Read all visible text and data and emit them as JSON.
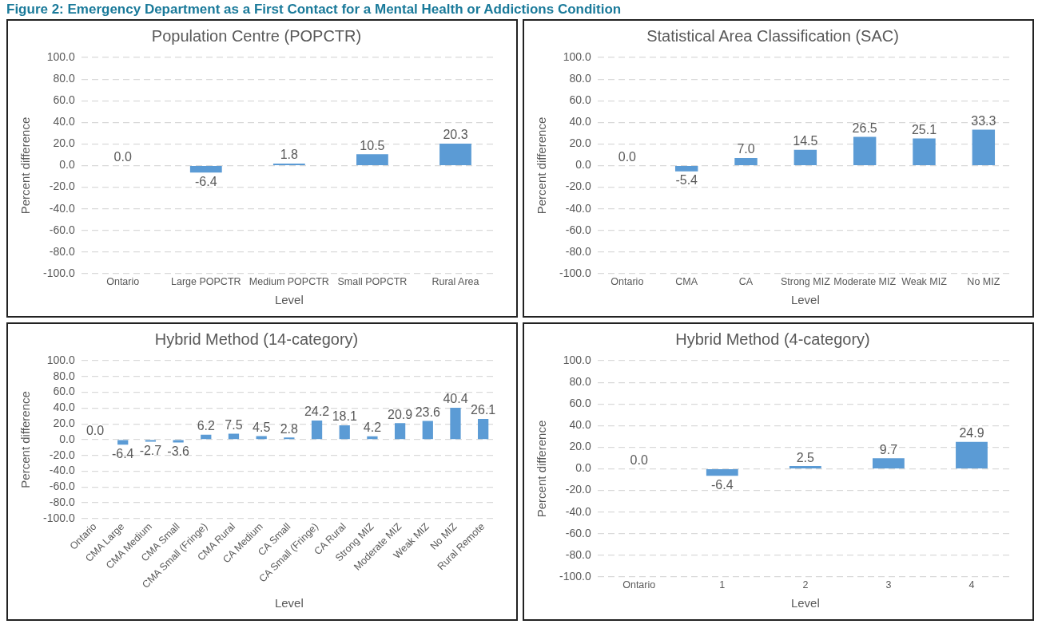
{
  "chart_data": [
    {
      "type": "bar",
      "title": "Population Centre (POPCTR)",
      "xlabel": "Level",
      "ylabel": "Percent difference",
      "annotations": [
        "Figure 2: Emergency Department as a First Contact for a Mental Health or Addictions Condition"
      ],
      "categories": [
        "Ontario",
        "Large POPCTR",
        "Medium POPCTR",
        "Small POPCTR",
        "Rural Area"
      ],
      "values": [
        0.0,
        -6.4,
        1.8,
        10.5,
        20.3
      ],
      "value_labels": [
        "0.0",
        "-6.4",
        "1.8",
        "10.5",
        "20.3"
      ],
      "color": "#5b9bd5",
      "ylim": [
        -100,
        100
      ],
      "yticks": [
        {
          "value": -100,
          "label": "-100.0"
        },
        {
          "value": -80,
          "label": "-80.0"
        },
        {
          "value": -60,
          "label": "-60.0"
        },
        {
          "value": -40,
          "label": "-40.0"
        },
        {
          "value": -20,
          "label": "-20.0"
        },
        {
          "value": 0,
          "label": "0.0"
        },
        {
          "value": 20,
          "label": "20.0"
        },
        {
          "value": 40,
          "label": "40.0"
        },
        {
          "value": 60,
          "label": "60.0"
        },
        {
          "value": 80,
          "label": "80.0"
        },
        {
          "value": 100,
          "label": "100.0"
        }
      ],
      "grid": "y"
    },
    {
      "type": "bar",
      "title": "Statistical Area Classification (SAC)",
      "xlabel": "Level",
      "ylabel": "Percent difference",
      "categories": [
        "Ontario",
        "CMA",
        "CA",
        "Strong MIZ",
        "Moderate MIZ",
        "Weak MIZ",
        "No MIZ"
      ],
      "values": [
        0.0,
        -5.4,
        7.0,
        14.5,
        26.5,
        25.1,
        33.3
      ],
      "value_labels": [
        "0.0",
        "-5.4",
        "7.0",
        "14.5",
        "26.5",
        "25.1",
        "33.3"
      ],
      "color": "#5b9bd5",
      "ylim": [
        -100,
        100
      ],
      "yticks": [
        {
          "value": -100,
          "label": "-100.0"
        },
        {
          "value": -80,
          "label": "-80.0"
        },
        {
          "value": -60,
          "label": "-60.0"
        },
        {
          "value": -40,
          "label": "-40.0"
        },
        {
          "value": -20,
          "label": "-20.0"
        },
        {
          "value": 0,
          "label": "0.0"
        },
        {
          "value": 20,
          "label": "20.0"
        },
        {
          "value": 40,
          "label": "40.0"
        },
        {
          "value": 60,
          "label": "60.0"
        },
        {
          "value": 80,
          "label": "80.0"
        },
        {
          "value": 100,
          "label": "100.0"
        }
      ],
      "grid": "y"
    },
    {
      "type": "bar",
      "title": "Hybrid Method (14-category)",
      "xlabel": "Level",
      "ylabel": "Percent difference",
      "categories": [
        "Ontario",
        "CMA Large",
        "CMA Medium",
        "CMA Small",
        "CMA Small (Fringe)",
        "CMA Rural",
        "CA Medium",
        "CA Small",
        "CA Small (Fringe)",
        "CA Rural",
        "Strong MIZ",
        "Moderate MIZ",
        "Weak MIZ",
        "No MIZ",
        "Rural Remote"
      ],
      "values": [
        0.0,
        -6.4,
        -2.7,
        -3.6,
        6.2,
        7.5,
        4.5,
        2.8,
        24.2,
        18.1,
        4.2,
        20.9,
        23.6,
        40.4,
        26.1
      ],
      "value_labels": [
        "0.0",
        "-6.4",
        "-2.7",
        "-3.6",
        "6.2",
        "7.5",
        "4.5",
        "2.8",
        "24.2",
        "18.1",
        "4.2",
        "20.9",
        "23.6",
        "40.4",
        "26.1"
      ],
      "color": "#5b9bd5",
      "ylim": [
        -100,
        100
      ],
      "yticks": [
        {
          "value": -100,
          "label": "-100.0"
        },
        {
          "value": -80,
          "label": "-80.0"
        },
        {
          "value": -60,
          "label": "-60.0"
        },
        {
          "value": -40,
          "label": "-40.0"
        },
        {
          "value": -20,
          "label": "-20.0"
        },
        {
          "value": 0,
          "label": "0.0"
        },
        {
          "value": 20,
          "label": "20.0"
        },
        {
          "value": 40,
          "label": "40.0"
        },
        {
          "value": 60,
          "label": "60.0"
        },
        {
          "value": 80,
          "label": "80.0"
        },
        {
          "value": 100,
          "label": "100.0"
        }
      ],
      "grid": "y"
    },
    {
      "type": "bar",
      "title": "Hybrid Method (4-category)",
      "xlabel": "Level",
      "ylabel": "Percent difference",
      "categories": [
        "Ontario",
        "1",
        "2",
        "3",
        "4"
      ],
      "values": [
        0.0,
        -6.4,
        2.5,
        9.7,
        24.9
      ],
      "value_labels": [
        "0.0",
        "-6.4",
        "2.5",
        "9.7",
        "24.9"
      ],
      "color": "#5b9bd5",
      "ylim": [
        -100,
        100
      ],
      "yticks": [
        {
          "value": -100,
          "label": "-100.0"
        },
        {
          "value": -80,
          "label": "-80.0"
        },
        {
          "value": -60,
          "label": "-60.0"
        },
        {
          "value": -40,
          "label": "-40.0"
        },
        {
          "value": -20,
          "label": "-20.0"
        },
        {
          "value": 0,
          "label": "0.0"
        },
        {
          "value": 20,
          "label": "20.0"
        },
        {
          "value": 40,
          "label": "40.0"
        },
        {
          "value": 60,
          "label": "60.0"
        },
        {
          "value": 80,
          "label": "80.0"
        },
        {
          "value": 100,
          "label": "100.0"
        }
      ],
      "grid": "y"
    }
  ]
}
